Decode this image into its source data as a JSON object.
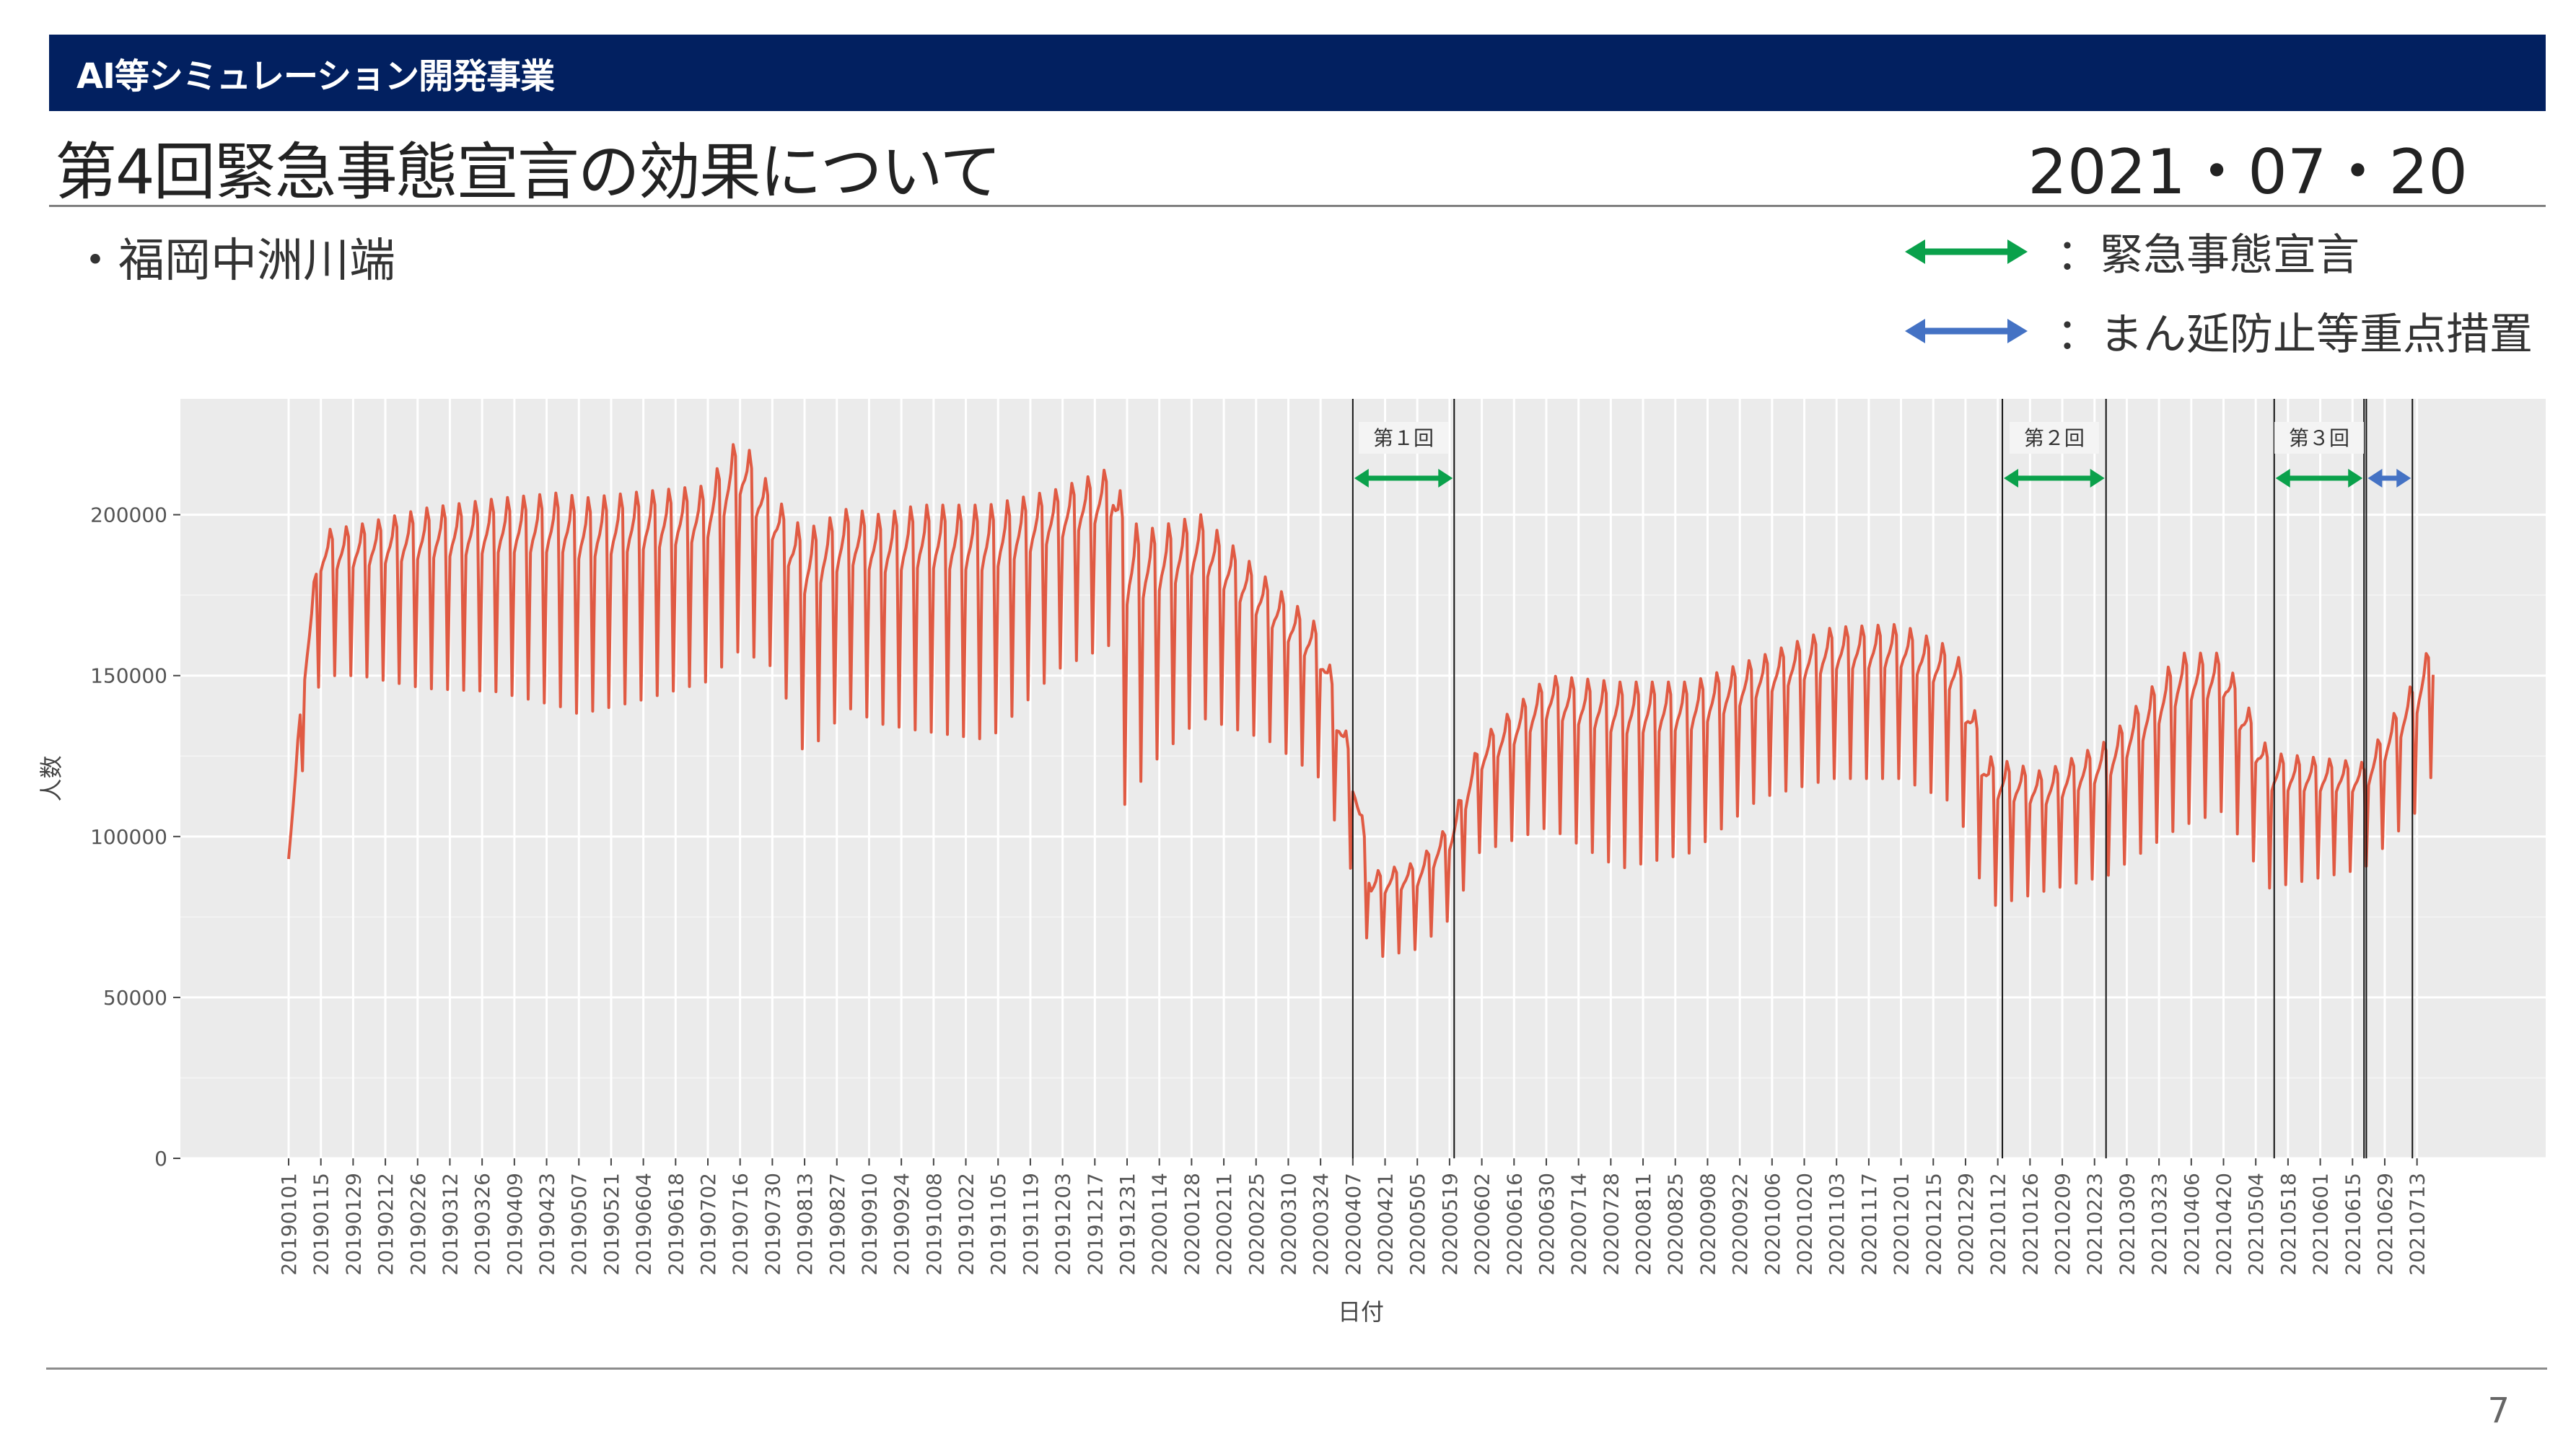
{
  "header": {
    "section": "AI等シミュレーション開発事業"
  },
  "slide": {
    "title": "第4回緊急事態宣言の効果について",
    "date": "2021・07・20",
    "subtitle": "・福岡中洲川端",
    "page_number": "7"
  },
  "legend": [
    {
      "label": "：緊急事態宣言",
      "color": "#0aa14b",
      "icon": "double-arrow-icon"
    },
    {
      "label": "：まん延防止等重点措置",
      "color": "#4472c4",
      "icon": "double-arrow-icon"
    }
  ],
  "chart_data": {
    "type": "line",
    "xlabel": "日付",
    "ylabel": "人数",
    "ylim": [
      0,
      236000
    ],
    "grid": true,
    "x_start": "20190101",
    "x_end": "20210720",
    "yticks": [
      0,
      50000,
      100000,
      150000,
      200000
    ],
    "ytick_labels": [
      "0",
      "50000",
      "100000",
      "150000",
      "200000"
    ],
    "xtick_labels": [
      "20190101",
      "20190115",
      "20190129",
      "20190212",
      "20190226",
      "20190312",
      "20190326",
      "20190409",
      "20190423",
      "20190507",
      "20190521",
      "20190604",
      "20190618",
      "20190702",
      "20190716",
      "20190730",
      "20190813",
      "20190827",
      "20190910",
      "20190924",
      "20191008",
      "20191022",
      "20191105",
      "20191119",
      "20191203",
      "20191217",
      "20191231",
      "20200114",
      "20200128",
      "20200211",
      "20200225",
      "20200310",
      "20200324",
      "20200407",
      "20200421",
      "20200505",
      "20200519",
      "20200602",
      "20200616",
      "20200630",
      "20200714",
      "20200728",
      "20200811",
      "20200825",
      "20200908",
      "20200922",
      "20201006",
      "20201020",
      "20201103",
      "20201117",
      "20201201",
      "20201215",
      "20201229",
      "20210112",
      "20210126",
      "20210209",
      "20210223",
      "20210309",
      "20210323",
      "20210406",
      "20210420",
      "20210504",
      "20210518",
      "20210601",
      "20210615",
      "20210629",
      "20210713"
    ],
    "series": [
      {
        "name": "",
        "color": "#e05a43",
        "weekly_peak": {
          "x": [
            "20190101",
            "20190108",
            "20190115",
            "20190201",
            "20190301",
            "20190401",
            "20190501",
            "20190507",
            "20190601",
            "20190701",
            "20190716",
            "20190801",
            "20190813",
            "20190901",
            "20190915",
            "20191001",
            "20191101",
            "20191201",
            "20191225",
            "20191231",
            "20200107",
            "20200201",
            "20200301",
            "20200324",
            "20200407",
            "20200415",
            "20200505",
            "20200520",
            "20200601",
            "20200701",
            "20200801",
            "20200901",
            "20201001",
            "20201101",
            "20201201",
            "20201225",
            "20210108",
            "20210201",
            "20210301",
            "20210401",
            "20210420",
            "20210510",
            "20210620",
            "20210713",
            "20210720"
          ],
          "y": [
            93000,
            158000,
            195000,
            197000,
            202000,
            205000,
            207000,
            205000,
            207000,
            209000,
            225000,
            205000,
            195000,
            202000,
            200000,
            203000,
            203000,
            208000,
            215000,
            200000,
            195000,
            200000,
            180000,
            165000,
            124000,
            89000,
            92000,
            105000,
            130000,
            150000,
            148000,
            148000,
            156000,
            165000,
            166000,
            158000,
            125000,
            120000,
            130000,
            157000,
            157000,
            126000,
            123000,
            150000,
            162000
          ]
        },
        "weekly_trough": {
          "x": [
            "20190101",
            "20190108",
            "20190115",
            "20190201",
            "20190301",
            "20190401",
            "20190501",
            "20190507",
            "20190601",
            "20190701",
            "20190716",
            "20190801",
            "20190813",
            "20190901",
            "20190915",
            "20191001",
            "20191101",
            "20191201",
            "20191225",
            "20191231",
            "20200107",
            "20200201",
            "20200301",
            "20200324",
            "20200407",
            "20200415",
            "20200505",
            "20200520",
            "20200601",
            "20200701",
            "20200801",
            "20200901",
            "20201001",
            "20201101",
            "20201201",
            "20201225",
            "20210108",
            "20210201",
            "20210301",
            "20210401",
            "20210420",
            "20210510",
            "20210620",
            "20210713",
            "20210720"
          ],
          "y": [
            93000,
            125000,
            150000,
            150000,
            146000,
            145000,
            140000,
            138000,
            142000,
            148000,
            158000,
            152000,
            125000,
            140000,
            135000,
            133000,
            130000,
            152000,
            160000,
            100000,
            120000,
            137000,
            130000,
            118000,
            88000,
            62000,
            65000,
            75000,
            95000,
            103000,
            90000,
            95000,
            112000,
            118000,
            118000,
            110000,
            78000,
            83000,
            88000,
            103000,
            108000,
            84000,
            90000,
            108000,
            120000
          ]
        }
      }
    ],
    "events": [
      {
        "label": "第１回",
        "type": "緊急事態宣言",
        "start": "20200407",
        "end": "20200521"
      },
      {
        "label": "第２回",
        "type": "緊急事態宣言",
        "start": "20210114",
        "end": "20210228"
      },
      {
        "label": "第３回",
        "type": "緊急事態宣言",
        "start": "20210512",
        "end": "20210620"
      },
      {
        "label": "",
        "type": "まん延防止等重点措置",
        "start": "20210621",
        "end": "20210711"
      }
    ]
  }
}
